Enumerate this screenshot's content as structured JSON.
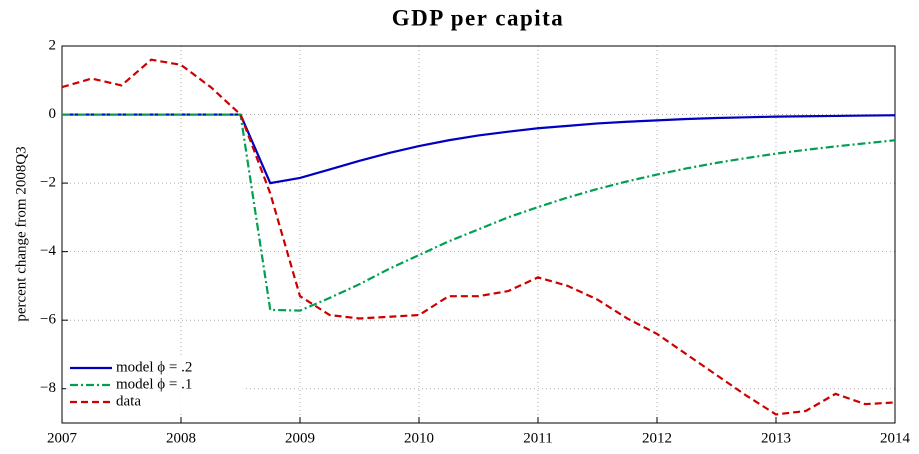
{
  "chart_data": {
    "type": "line",
    "title": "GDP per capita",
    "y_label": "percent change from 2008Q3",
    "x": [
      2007,
      2007.25,
      2007.5,
      2007.75,
      2008,
      2008.25,
      2008.5,
      2008.75,
      2009,
      2009.25,
      2009.5,
      2009.75,
      2010,
      2010.25,
      2010.5,
      2010.75,
      2011,
      2011.25,
      2011.5,
      2011.75,
      2012,
      2012.25,
      2012.5,
      2012.75,
      2013,
      2013.25,
      2013.5,
      2013.75,
      2014
    ],
    "series": [
      {
        "name": "model ϕ = .2",
        "color": "#0000c0",
        "linestyle": "solid",
        "values": [
          0,
          0,
          0,
          0,
          0,
          0,
          0,
          -2,
          -1.85,
          -1.6,
          -1.35,
          -1.12,
          -0.92,
          -0.75,
          -0.61,
          -0.5,
          -0.4,
          -0.33,
          -0.26,
          -0.21,
          -0.17,
          -0.13,
          -0.1,
          -0.08,
          -0.06,
          -0.05,
          -0.04,
          -0.03,
          -0.02
        ]
      },
      {
        "name": "model ϕ = .1",
        "color": "#00a050",
        "linestyle": "dashdot",
        "values": [
          0,
          0,
          0,
          0,
          0,
          0,
          0,
          -5.7,
          -5.72,
          -5.35,
          -4.95,
          -4.5,
          -4.1,
          -3.7,
          -3.35,
          -3.0,
          -2.7,
          -2.42,
          -2.17,
          -1.95,
          -1.75,
          -1.57,
          -1.41,
          -1.27,
          -1.14,
          -1.03,
          -0.93,
          -0.84,
          -0.75
        ]
      },
      {
        "name": "data",
        "color": "#cc0000",
        "linestyle": "dashed",
        "values": [
          0.8,
          1.05,
          0.85,
          1.6,
          1.45,
          0.8,
          0.0,
          -2.3,
          -5.3,
          -5.85,
          -5.95,
          -5.9,
          -5.85,
          -5.3,
          -5.3,
          -5.15,
          -4.75,
          -5.0,
          -5.4,
          -5.95,
          -6.4,
          -7.0,
          -7.6,
          -8.2,
          -8.75,
          -8.65,
          -8.15,
          -8.45,
          -8.4
        ]
      }
    ],
    "xlim": [
      2007,
      2014
    ],
    "xticks": [
      2007,
      2008,
      2009,
      2010,
      2011,
      2012,
      2013,
      2014
    ],
    "ylim": [
      -9,
      2
    ],
    "yticks": [
      {
        "value": -8,
        "label": "−8"
      },
      {
        "value": -6,
        "label": "−6"
      },
      {
        "value": -4,
        "label": "−4"
      },
      {
        "value": -2,
        "label": "−2"
      },
      0,
      2
    ],
    "grid": true,
    "legend": "lower left"
  }
}
